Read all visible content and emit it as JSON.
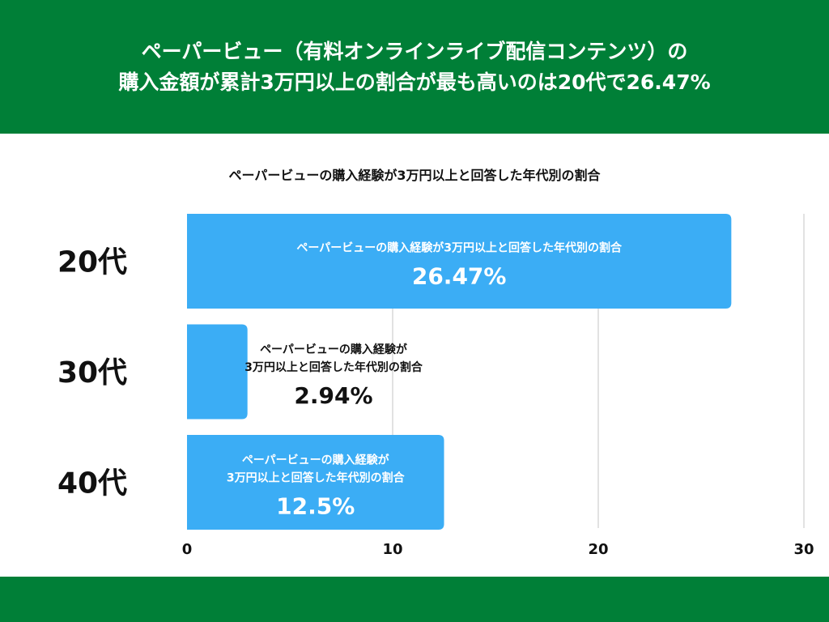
{
  "header": {
    "title_line1": "ペーパービュー（有料オンラインライブ配信コンテンツ）の",
    "title_line2": "購入金額が累計3万円以上の割合が最も高いのは20代で26.47%"
  },
  "colors": {
    "brand": "#007f37",
    "bar": "#3badf5",
    "grid": "#d9d9d9"
  },
  "chart_data": {
    "type": "bar",
    "orientation": "horizontal",
    "title": "ペーパービューの購入経験が3万円以上と回答した年代別の割合",
    "categories": [
      "20代",
      "30代",
      "40代"
    ],
    "series": [
      {
        "name": "ペーパービューの購入経験が3万円以上と回答した年代別の割合",
        "values": [
          26.47,
          2.94,
          12.5
        ]
      }
    ],
    "value_labels": [
      "26.47%",
      "2.94%",
      "12.5%"
    ],
    "bar_labels": [
      [
        "ペーパービューの購入経験が3万円以上と回答した年代別の割合"
      ],
      [
        "ペーパービューの購入経験が",
        "3万円以上と回答した年代別の割合"
      ],
      [
        "ペーパービューの購入経験が",
        "3万円以上と回答した年代別の割合"
      ]
    ],
    "xlim": [
      0,
      30
    ],
    "xticks": [
      0,
      10,
      20,
      30
    ],
    "grid": true,
    "xlabel": "",
    "ylabel": ""
  }
}
